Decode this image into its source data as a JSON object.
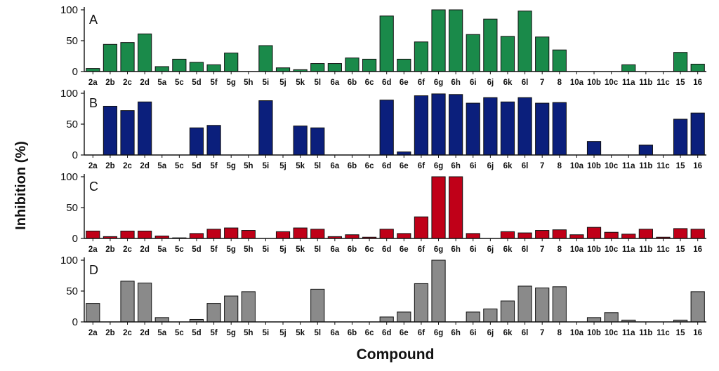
{
  "chart_data": {
    "type": "bar",
    "xlabel": "Compound",
    "ylabel": "Inhibition (%)",
    "categories": [
      "2a",
      "2b",
      "2c",
      "2d",
      "5a",
      "5c",
      "5d",
      "5f",
      "5g",
      "5h",
      "5i",
      "5j",
      "5k",
      "5l",
      "6a",
      "6b",
      "6c",
      "6d",
      "6e",
      "6f",
      "6g",
      "6h",
      "6i",
      "6j",
      "6k",
      "6l",
      "7",
      "8",
      "10a",
      "10b",
      "10c",
      "11a",
      "11b",
      "11c",
      "15",
      "16"
    ],
    "ylim": [
      0,
      100
    ],
    "yticks": [
      0,
      50,
      100
    ],
    "panels": [
      {
        "label": "A",
        "color": "#1a8a4a",
        "values": [
          5,
          44,
          47,
          61,
          8,
          20,
          15,
          11,
          30,
          0,
          42,
          6,
          3,
          13,
          13,
          22,
          20,
          90,
          20,
          48,
          100,
          100,
          60,
          85,
          57,
          98,
          56,
          35,
          0,
          0,
          0,
          11,
          0,
          0,
          31,
          12
        ]
      },
      {
        "label": "B",
        "color": "#0b1f7c",
        "values": [
          0,
          79,
          72,
          86,
          0,
          0,
          44,
          48,
          0,
          0,
          88,
          0,
          47,
          44,
          0,
          0,
          0,
          89,
          5,
          96,
          99,
          98,
          84,
          93,
          86,
          93,
          84,
          85,
          0,
          22,
          0,
          0,
          16,
          0,
          58,
          68
        ]
      },
      {
        "label": "C",
        "color": "#c00018",
        "values": [
          12,
          3,
          12,
          12,
          4,
          1,
          8,
          15,
          17,
          13,
          0,
          11,
          17,
          15,
          3,
          6,
          2,
          15,
          8,
          35,
          100,
          100,
          8,
          0,
          11,
          9,
          13,
          14,
          6,
          18,
          10,
          7,
          15,
          2,
          16,
          15
        ]
      },
      {
        "label": "D",
        "color": "#8a8a8a",
        "values": [
          30,
          0,
          66,
          63,
          7,
          0,
          4,
          30,
          42,
          49,
          0,
          0,
          0,
          53,
          0,
          0,
          0,
          8,
          16,
          62,
          100,
          0,
          16,
          21,
          34,
          58,
          55,
          57,
          0,
          7,
          15,
          3,
          0,
          0,
          3,
          49
        ]
      }
    ]
  }
}
